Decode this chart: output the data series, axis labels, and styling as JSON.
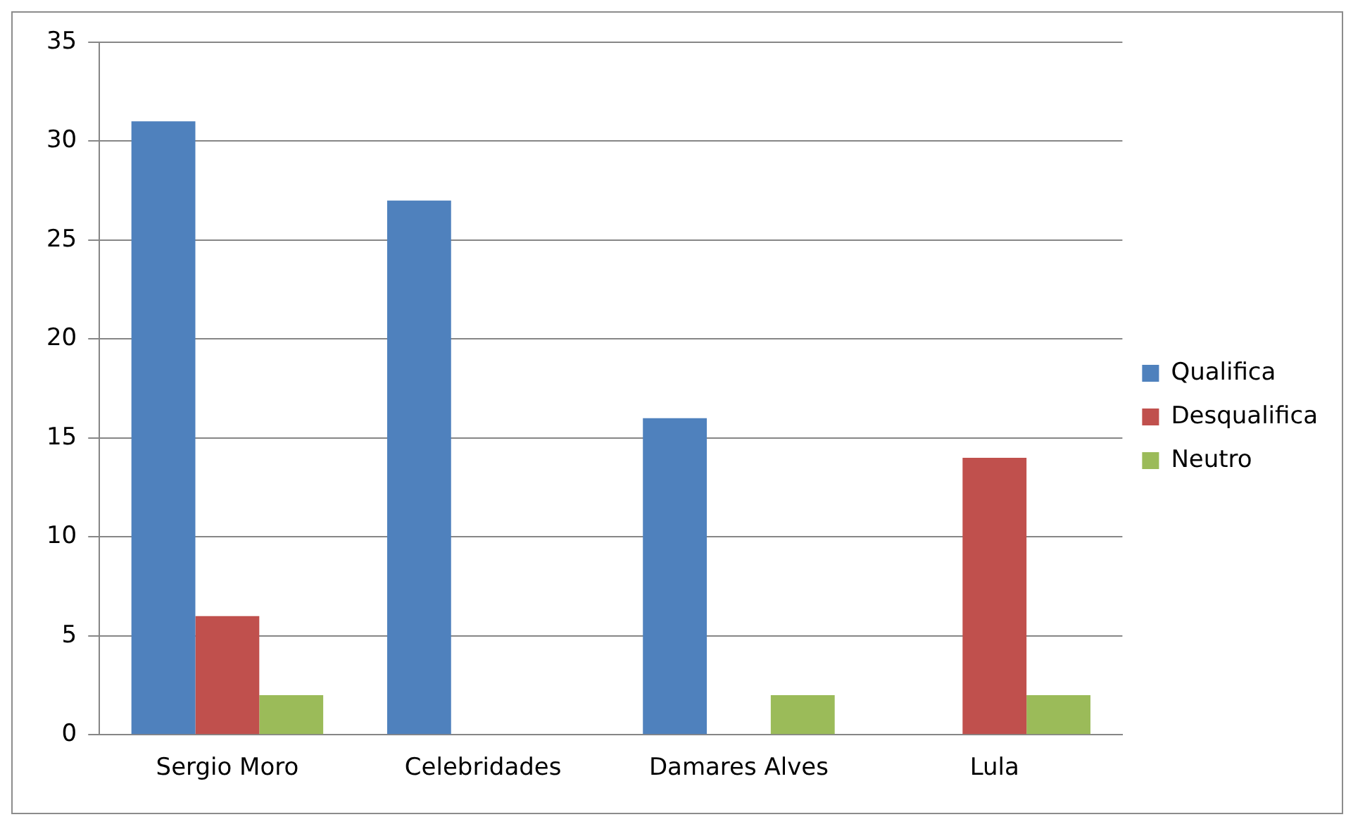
{
  "chart_data": {
    "type": "bar",
    "categories": [
      "Sergio Moro",
      "Celebridades",
      "Damares Alves",
      "Lula"
    ],
    "series": [
      {
        "name": "Qualifica",
        "color": "#4f81bd",
        "values": [
          31,
          27,
          16,
          0
        ]
      },
      {
        "name": "Desqualifica",
        "color": "#c0504d",
        "values": [
          6,
          0,
          0,
          14
        ]
      },
      {
        "name": "Neutro",
        "color": "#9bbb59",
        "values": [
          2,
          0,
          2,
          2
        ]
      }
    ],
    "ylim": [
      0,
      35
    ],
    "yticks": [
      0,
      5,
      10,
      15,
      20,
      25,
      30,
      35
    ],
    "grid": "y",
    "legend": "right"
  }
}
